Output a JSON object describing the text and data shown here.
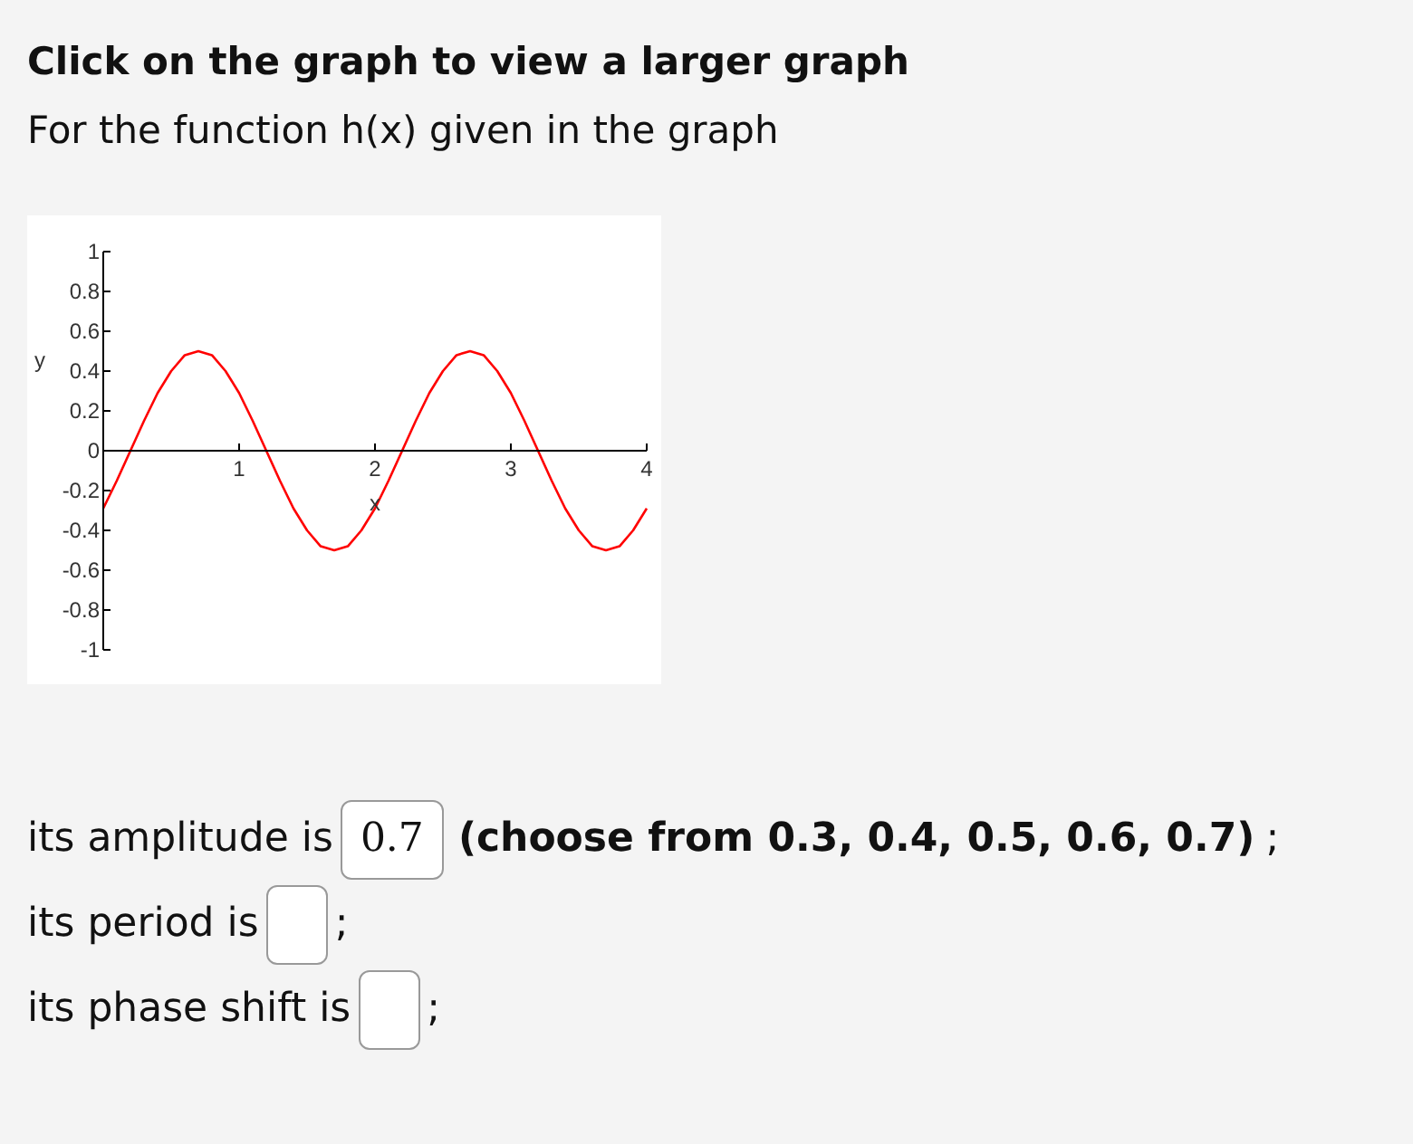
{
  "chart_data": {
    "type": "line",
    "title": "Click on the graph to view a larger graph",
    "subtitle": "For the function h(x) given in the graph",
    "xlabel": "x",
    "ylabel": "y",
    "xlim": [
      0,
      4
    ],
    "xticks": [
      1,
      2,
      3,
      4
    ],
    "ylim": [
      -1,
      1
    ],
    "yticks": [
      -1,
      -0.8,
      -0.6,
      -0.4,
      -0.2,
      0,
      0.2,
      0.4,
      0.6,
      0.8,
      1
    ],
    "x": [
      0,
      0.1,
      0.2,
      0.3,
      0.4,
      0.5,
      0.6,
      0.7,
      0.8,
      0.9,
      1,
      1.1,
      1.2,
      1.3,
      1.4,
      1.5,
      1.6,
      1.7,
      1.8,
      1.9,
      2,
      2.1,
      2.2,
      2.3,
      2.4,
      2.5,
      2.6,
      2.7,
      2.8,
      2.9,
      3,
      3.1,
      3.2,
      3.3,
      3.4,
      3.5,
      3.6,
      3.7,
      3.8,
      3.9,
      4
    ],
    "series": [
      {
        "color": "#ff0000",
        "values": [
          -0.29,
          -0.15,
          0,
          0.15,
          0.29,
          0.4,
          0.48,
          0.5,
          0.48,
          0.4,
          0.29,
          0.15,
          0,
          -0.15,
          -0.29,
          -0.4,
          -0.48,
          -0.5,
          -0.48,
          -0.4,
          -0.29,
          -0.15,
          0,
          0.15,
          0.29,
          0.4,
          0.48,
          0.5,
          0.48,
          0.4,
          0.29,
          0.15,
          0,
          -0.15,
          -0.29,
          -0.4,
          -0.48,
          -0.5,
          -0.48,
          -0.4,
          -0.29
        ]
      }
    ],
    "annotations": [
      "its amplitude is",
      "0.7",
      "(choose from 0.3, 0.4, 0.5, 0.6, 0.7)",
      ";",
      "its period is",
      ";",
      "its phase shift is",
      ";"
    ]
  }
}
